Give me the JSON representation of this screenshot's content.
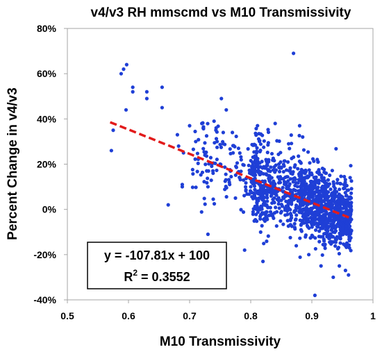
{
  "chart_data": {
    "type": "scatter",
    "title": "v4/v3 RH mmscmd vs M10 Transmissivity",
    "xlabel": "M10 Transmissivity",
    "ylabel": "Percent Change in v4/v3",
    "xlim": [
      0.5,
      1.0
    ],
    "ylim": [
      -40,
      80
    ],
    "x_ticks": [
      0.5,
      0.6,
      0.7,
      0.8,
      0.9,
      1.0
    ],
    "x_tick_labels": [
      "0.5",
      "0.6",
      "0.7",
      "0.8",
      "0.9",
      "1"
    ],
    "y_ticks": [
      -40,
      -20,
      0,
      20,
      40,
      60,
      80
    ],
    "y_tick_labels": [
      "-40%",
      "-20%",
      "0%",
      "20%",
      "40%",
      "60%",
      "80%"
    ],
    "grid": false,
    "series": [
      {
        "marker_color": "#1f3fd6",
        "points": [
          [
            0.572,
            26
          ],
          [
            0.575,
            35
          ],
          [
            0.588,
            60
          ],
          [
            0.592,
            62
          ],
          [
            0.597,
            64
          ],
          [
            0.596,
            44
          ],
          [
            0.607,
            54
          ],
          [
            0.607,
            52
          ],
          [
            0.63,
            52
          ],
          [
            0.63,
            49
          ],
          [
            0.655,
            54
          ],
          [
            0.655,
            45
          ],
          [
            0.665,
            2
          ],
          [
            0.68,
            33
          ],
          [
            0.682,
            28
          ],
          [
            0.688,
            11
          ],
          [
            0.688,
            10
          ],
          [
            0.69,
            25
          ],
          [
            0.7,
            37
          ],
          [
            0.71,
            30
          ],
          [
            0.72,
            38
          ],
          [
            0.725,
            24
          ],
          [
            0.728,
            17
          ],
          [
            0.73,
            10
          ],
          [
            0.73,
            -11
          ],
          [
            0.74,
            39
          ],
          [
            0.745,
            30
          ],
          [
            0.75,
            20
          ],
          [
            0.752,
            49
          ],
          [
            0.755,
            29
          ],
          [
            0.76,
            44
          ],
          [
            0.765,
            12
          ],
          [
            0.77,
            34
          ],
          [
            0.775,
            5
          ],
          [
            0.78,
            27
          ],
          [
            0.782,
            14
          ],
          [
            0.79,
            -18
          ],
          [
            0.8,
            10
          ],
          [
            0.81,
            3
          ],
          [
            0.82,
            -23
          ],
          [
            0.84,
            38
          ],
          [
            0.85,
            4
          ],
          [
            0.862,
            29
          ],
          [
            0.87,
            69
          ],
          [
            0.872,
            -8
          ],
          [
            0.88,
            37
          ],
          [
            0.885,
            32
          ],
          [
            0.895,
            -20
          ],
          [
            0.905,
            -38
          ],
          [
            0.915,
            -25
          ],
          [
            0.935,
            -30
          ],
          [
            0.945,
            -25
          ],
          [
            0.955,
            -27
          ],
          [
            0.96,
            -29
          ]
        ]
      }
    ],
    "regression": {
      "slope": -107.81,
      "intercept": 100,
      "x_range": [
        0.57,
        0.965
      ],
      "color": "#e21b1b",
      "style": "dashed"
    },
    "annotation": {
      "equation": "y = -107.81x + 100",
      "r2_base": "R",
      "r2_sup": "2",
      "r2_value": " = 0.3552"
    }
  }
}
